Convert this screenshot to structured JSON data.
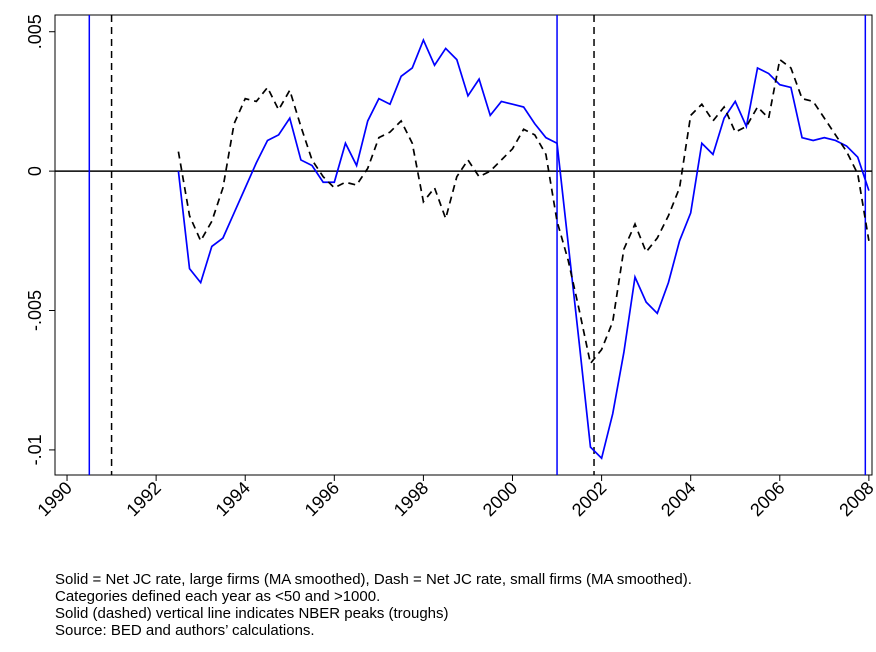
{
  "chart_data": {
    "type": "line",
    "x": [
      1992.5,
      1992.75,
      1993.0,
      1993.25,
      1993.5,
      1993.75,
      1994.0,
      1994.25,
      1994.5,
      1994.75,
      1995.0,
      1995.25,
      1995.5,
      1995.75,
      1996.0,
      1996.25,
      1996.5,
      1996.75,
      1997.0,
      1997.25,
      1997.5,
      1997.75,
      1998.0,
      1998.25,
      1998.5,
      1998.75,
      1999.0,
      1999.25,
      1999.5,
      1999.75,
      2000.0,
      2000.25,
      2000.5,
      2000.75,
      2001.0,
      2001.25,
      2001.5,
      2001.75,
      2002.0,
      2002.25,
      2002.5,
      2002.75,
      2003.0,
      2003.25,
      2003.5,
      2003.75,
      2004.0,
      2004.25,
      2004.5,
      2004.75,
      2005.0,
      2005.25,
      2005.5,
      2005.75,
      2006.0,
      2006.25,
      2006.5,
      2006.75,
      2007.0,
      2007.25,
      2007.5,
      2007.75,
      2008.0
    ],
    "series": [
      {
        "color": "#0000ff",
        "style": "solid",
        "values": [
          0,
          -0.0035,
          -0.004,
          -0.0027,
          -0.0024,
          -0.0015,
          -0.0006,
          0.0003,
          0.0011,
          0.0013,
          0.0019,
          0.0004,
          0.0002,
          -0.0004,
          -0.0004,
          0.001,
          0.0002,
          0.0018,
          0.0026,
          0.0024,
          0.0034,
          0.0037,
          0.0047,
          0.0038,
          0.0044,
          0.004,
          0.0027,
          0.0033,
          0.002,
          0.0025,
          0.0024,
          0.0023,
          0.0017,
          0.0012,
          0.001,
          -0.0026,
          -0.0062,
          -0.0099,
          -0.0103,
          -0.0087,
          -0.0065,
          -0.0038,
          -0.0047,
          -0.0051,
          -0.004,
          -0.0025,
          -0.0015,
          0.001,
          0.0006,
          0.0019,
          0.0025,
          0.0016,
          0.0037,
          0.0035,
          0.0031,
          0.003,
          0.0012,
          0.0011,
          0.0012,
          0.0011,
          0.0009,
          0.0005,
          -0.0007
        ]
      },
      {
        "color": "#000000",
        "style": "dashed",
        "values": [
          0.0007,
          -0.0016,
          -0.0025,
          -0.0018,
          -0.0006,
          0.0017,
          0.0026,
          0.0025,
          0.003,
          0.0022,
          0.0029,
          0.0016,
          0.0004,
          -0.0002,
          -0.0006,
          -0.0004,
          -0.0005,
          0.0001,
          0.0012,
          0.0014,
          0.0018,
          0.001,
          -0.0011,
          -0.0006,
          -0.0017,
          -0.0002,
          0.0004,
          -0.0002,
          0,
          0.0004,
          0.0008,
          0.0015,
          0.0013,
          0.0006,
          -0.0018,
          -0.0032,
          -0.005,
          -0.0069,
          -0.0064,
          -0.0054,
          -0.0028,
          -0.0019,
          -0.0029,
          -0.0024,
          -0.0016,
          -0.0006,
          0.002,
          0.0024,
          0.0018,
          0.0023,
          0.0014,
          0.0016,
          0.0023,
          0.0019,
          0.004,
          0.0037,
          0.0026,
          0.0025,
          0.0019,
          0.0013,
          0.0007,
          -0.0001,
          -0.0025
        ]
      }
    ],
    "peaks": [
      1990.5,
      2001.0,
      2007.92
    ],
    "peak_color": "#0000ff",
    "peak_style": "solid",
    "troughs": [
      1991.0,
      2001.83
    ],
    "trough_color": "#000000",
    "trough_style": "dashed",
    "hline": 0,
    "xlim": [
      1989.73,
      2008.07
    ],
    "xticks": [
      1990,
      1992,
      1994,
      1996,
      1998,
      2000,
      2002,
      2004,
      2006,
      2008
    ],
    "ylim": [
      -0.0109,
      0.0056
    ],
    "yticks": [
      {
        "value": -0.01,
        "label": "-.01"
      },
      {
        "value": -0.005,
        "label": "-.005"
      },
      0,
      {
        "value": 0.005,
        "label": ".005"
      }
    ],
    "notes": [
      "Solid = Net JC rate, large firms (MA smoothed), Dash = Net JC rate, small firms (MA smoothed).",
      "Categories defined each year as <50 and >1000.",
      "Solid (dashed) vertical line indicates NBER peaks (troughs)",
      "Source: BED and authors’ calculations."
    ]
  }
}
